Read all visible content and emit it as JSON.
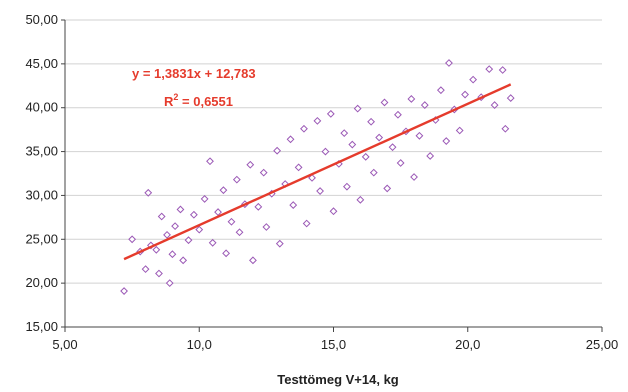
{
  "chart_data": {
    "type": "scatter",
    "title": "",
    "xlabel": "Testtömeg V+14, kg",
    "ylabel": "",
    "xlim": [
      5,
      25
    ],
    "ylim": [
      15,
      50
    ],
    "x_ticks": [
      "5,00",
      "10,0",
      "15,0",
      "20,0",
      "25,00"
    ],
    "y_ticks": [
      "15,00",
      "20,00",
      "25,00",
      "30,00",
      "35,00",
      "40,00",
      "45,00",
      "50,00"
    ],
    "grid": "horizontal",
    "legend": "none",
    "series": [
      {
        "marker": "hollow-diamond",
        "color": "#9b59b6",
        "points": [
          [
            7.2,
            19.1
          ],
          [
            7.5,
            25.0
          ],
          [
            7.8,
            23.6
          ],
          [
            8.0,
            21.6
          ],
          [
            8.1,
            30.3
          ],
          [
            8.2,
            24.3
          ],
          [
            8.4,
            23.8
          ],
          [
            8.5,
            21.1
          ],
          [
            8.6,
            27.6
          ],
          [
            8.8,
            25.5
          ],
          [
            8.9,
            20.0
          ],
          [
            9.0,
            23.3
          ],
          [
            9.1,
            26.5
          ],
          [
            9.3,
            28.4
          ],
          [
            9.4,
            22.6
          ],
          [
            9.6,
            24.9
          ],
          [
            9.8,
            27.8
          ],
          [
            10.0,
            26.1
          ],
          [
            10.2,
            29.6
          ],
          [
            10.4,
            33.9
          ],
          [
            10.5,
            24.6
          ],
          [
            10.7,
            28.1
          ],
          [
            10.9,
            30.6
          ],
          [
            11.0,
            23.4
          ],
          [
            11.2,
            27.0
          ],
          [
            11.4,
            31.8
          ],
          [
            11.5,
            25.8
          ],
          [
            11.7,
            29.0
          ],
          [
            11.9,
            33.5
          ],
          [
            12.0,
            22.6
          ],
          [
            12.2,
            28.7
          ],
          [
            12.4,
            32.6
          ],
          [
            12.5,
            26.4
          ],
          [
            12.7,
            30.2
          ],
          [
            12.9,
            35.1
          ],
          [
            13.0,
            24.5
          ],
          [
            13.2,
            31.3
          ],
          [
            13.4,
            36.4
          ],
          [
            13.5,
            28.9
          ],
          [
            13.7,
            33.2
          ],
          [
            13.9,
            37.6
          ],
          [
            14.0,
            26.8
          ],
          [
            14.2,
            32.0
          ],
          [
            14.4,
            38.5
          ],
          [
            14.5,
            30.5
          ],
          [
            14.7,
            35.0
          ],
          [
            14.9,
            39.3
          ],
          [
            15.0,
            28.2
          ],
          [
            15.2,
            33.6
          ],
          [
            15.4,
            37.1
          ],
          [
            15.5,
            31.0
          ],
          [
            15.7,
            35.8
          ],
          [
            15.9,
            39.9
          ],
          [
            16.0,
            29.5
          ],
          [
            16.2,
            34.4
          ],
          [
            16.4,
            38.4
          ],
          [
            16.5,
            32.6
          ],
          [
            16.7,
            36.6
          ],
          [
            16.9,
            40.6
          ],
          [
            17.0,
            30.8
          ],
          [
            17.2,
            35.5
          ],
          [
            17.4,
            39.2
          ],
          [
            17.5,
            33.7
          ],
          [
            17.7,
            37.3
          ],
          [
            17.9,
            41.0
          ],
          [
            18.0,
            32.1
          ],
          [
            18.2,
            36.8
          ],
          [
            18.4,
            40.3
          ],
          [
            18.6,
            34.5
          ],
          [
            18.8,
            38.6
          ],
          [
            19.0,
            42.0
          ],
          [
            19.2,
            36.2
          ],
          [
            19.3,
            45.1
          ],
          [
            19.5,
            39.8
          ],
          [
            19.7,
            37.4
          ],
          [
            19.9,
            41.5
          ],
          [
            20.2,
            43.2
          ],
          [
            20.5,
            41.2
          ],
          [
            20.8,
            44.4
          ],
          [
            21.0,
            40.3
          ],
          [
            21.3,
            44.3
          ],
          [
            21.4,
            37.6
          ],
          [
            21.6,
            41.1
          ]
        ]
      }
    ],
    "trendline": {
      "slope": 1.3831,
      "intercept": 12.783,
      "x_range": [
        7.2,
        21.6
      ],
      "color": "#e53b2c",
      "equation_text": "y = 1,3831x + 12,783",
      "r2_label": "R",
      "r2_sup": "2",
      "r2_value": " = 0,6551"
    }
  }
}
